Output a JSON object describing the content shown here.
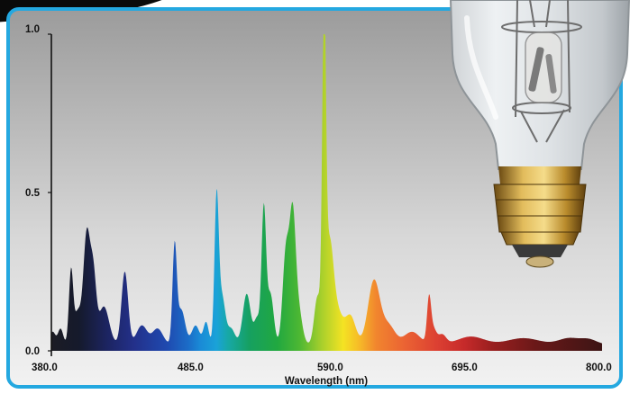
{
  "chart_data": {
    "type": "area",
    "title": "",
    "xlabel": "Wavelength (nm)",
    "ylabel": "",
    "x_ticks": [
      "380.0",
      "485.0",
      "590.0",
      "695.0",
      "800.0"
    ],
    "y_ticks": [
      "1.0",
      "0.5",
      "0.0"
    ],
    "xlim": [
      380,
      800
    ],
    "ylim": [
      0,
      1.0
    ],
    "grid": false,
    "legend": "none",
    "peaks": [
      {
        "x": 381,
        "y": 0.04,
        "w": 2
      },
      {
        "x": 387,
        "y": 0.05,
        "w": 2
      },
      {
        "x": 395,
        "y": 0.23,
        "w": 1.6
      },
      {
        "x": 400,
        "y": 0.1,
        "w": 2.5
      },
      {
        "x": 407,
        "y": 0.35,
        "w": 2.6
      },
      {
        "x": 412,
        "y": 0.2,
        "w": 2.2
      },
      {
        "x": 420,
        "y": 0.12,
        "w": 4
      },
      {
        "x": 436,
        "y": 0.23,
        "w": 2.5
      },
      {
        "x": 449,
        "y": 0.06,
        "w": 4
      },
      {
        "x": 461,
        "y": 0.05,
        "w": 4
      },
      {
        "x": 474,
        "y": 0.3,
        "w": 1.6
      },
      {
        "x": 479,
        "y": 0.11,
        "w": 3
      },
      {
        "x": 490,
        "y": 0.06,
        "w": 3
      },
      {
        "x": 498,
        "y": 0.07,
        "w": 2
      },
      {
        "x": 506,
        "y": 0.45,
        "w": 1.6
      },
      {
        "x": 510,
        "y": 0.15,
        "w": 2.5
      },
      {
        "x": 517,
        "y": 0.05,
        "w": 3
      },
      {
        "x": 529,
        "y": 0.16,
        "w": 3
      },
      {
        "x": 537,
        "y": 0.08,
        "w": 2.2
      },
      {
        "x": 542,
        "y": 0.42,
        "w": 1.7
      },
      {
        "x": 547,
        "y": 0.16,
        "w": 2.5
      },
      {
        "x": 559,
        "y": 0.3,
        "w": 2.5
      },
      {
        "x": 564,
        "y": 0.36,
        "w": 2.2
      },
      {
        "x": 568,
        "y": 0.12,
        "w": 3
      },
      {
        "x": 583,
        "y": 0.15,
        "w": 2.5
      },
      {
        "x": 588,
        "y": 1.0,
        "w": 1.4
      },
      {
        "x": 592,
        "y": 0.3,
        "w": 3
      },
      {
        "x": 598,
        "y": 0.1,
        "w": 4
      },
      {
        "x": 608,
        "y": 0.09,
        "w": 4
      },
      {
        "x": 626,
        "y": 0.2,
        "w": 4.5
      },
      {
        "x": 637,
        "y": 0.06,
        "w": 5
      },
      {
        "x": 655,
        "y": 0.04,
        "w": 6
      },
      {
        "x": 668,
        "y": 0.13,
        "w": 1.5
      },
      {
        "x": 671,
        "y": 0.05,
        "w": 2.5
      },
      {
        "x": 678,
        "y": 0.03,
        "w": 3
      },
      {
        "x": 700,
        "y": 0.025,
        "w": 10
      },
      {
        "x": 740,
        "y": 0.02,
        "w": 12
      },
      {
        "x": 775,
        "y": 0.02,
        "w": 8
      },
      {
        "x": 790,
        "y": 0.015,
        "w": 6
      }
    ],
    "baseline": 0.02
  }
}
